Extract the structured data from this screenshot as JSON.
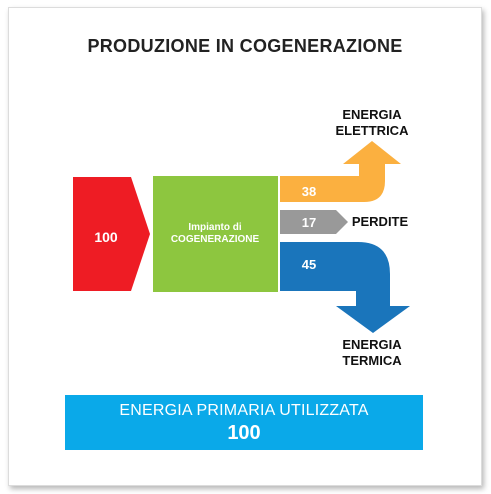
{
  "title": "PRODUZIONE IN COGENERAZIONE",
  "input": {
    "value": "100",
    "color": "#ee1c24"
  },
  "plant": {
    "label_line1": "Impianto di",
    "label_line2": "COGENERAZIONE",
    "color": "#8dc63f"
  },
  "outputs": {
    "electric": {
      "value": "38",
      "label_line1": "ENERGIA",
      "label_line2": "ELETTRICA",
      "color": "#fbb040"
    },
    "losses": {
      "value": "17",
      "label": "PERDITE",
      "color": "#999999"
    },
    "thermal": {
      "value": "45",
      "label_line1": "ENERGIA",
      "label_line2": "TERMICA",
      "color": "#1a75bb"
    }
  },
  "banner": {
    "label": "ENERGIA PRIMARIA UTILIZZATA",
    "value": "100",
    "color": "#0aa9e9"
  }
}
